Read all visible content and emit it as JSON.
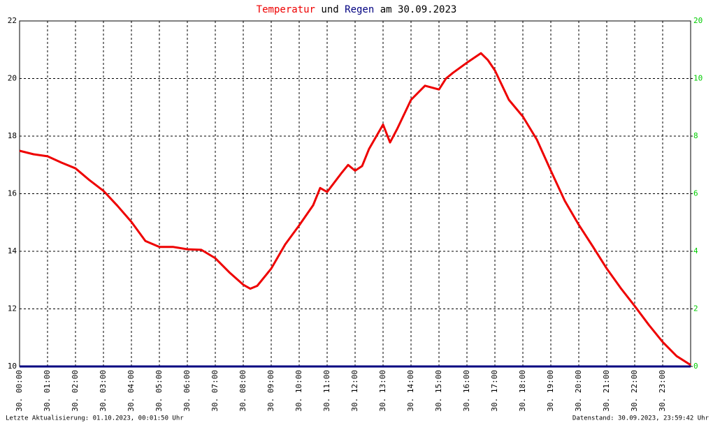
{
  "chart_data": {
    "type": "line",
    "title_connector": "und",
    "title_suffix": "am 30.09.2023",
    "series": [
      {
        "name": "Temperatur",
        "color": "#ee0000",
        "axis": "y",
        "x": [
          0,
          0.5,
          1,
          1.5,
          2,
          2.5,
          3,
          3.5,
          4,
          4.5,
          5,
          5.5,
          6,
          6.5,
          7,
          7.5,
          8,
          8.25,
          8.5,
          9,
          9.5,
          10,
          10.5,
          10.75,
          11,
          11.5,
          11.75,
          12,
          12.25,
          12.5,
          13,
          13.25,
          13.5,
          14,
          14.5,
          15,
          15.25,
          15.5,
          16,
          16.5,
          16.75,
          17,
          17.5,
          18,
          18.5,
          19,
          19.5,
          20,
          20.5,
          21,
          21.5,
          22,
          22.5,
          23,
          23.5,
          24
        ],
        "values": [
          17.49,
          17.37,
          17.3,
          17.08,
          16.88,
          16.47,
          16.1,
          15.58,
          15.02,
          14.36,
          14.15,
          14.15,
          14.07,
          14.05,
          13.76,
          13.27,
          12.84,
          12.7,
          12.8,
          13.4,
          14.24,
          14.9,
          15.6,
          16.2,
          16.06,
          16.7,
          17.0,
          16.8,
          16.96,
          17.56,
          18.4,
          17.78,
          18.24,
          19.26,
          19.75,
          19.62,
          20.0,
          20.2,
          20.55,
          20.88,
          20.64,
          20.28,
          19.26,
          18.68,
          17.88,
          16.8,
          15.75,
          14.92,
          14.17,
          13.4,
          12.72,
          12.1,
          11.45,
          10.85,
          10.36,
          10.05
        ]
      },
      {
        "name": "Regen",
        "color": "#000080",
        "axis": "y2",
        "x": [
          0,
          24
        ],
        "values": [
          0,
          0
        ]
      }
    ],
    "xlim": [
      0,
      24
    ],
    "xticks": [
      {
        "value": 0,
        "label": "30. 00:00"
      },
      {
        "value": 1,
        "label": "30. 01:00"
      },
      {
        "value": 2,
        "label": "30. 02:00"
      },
      {
        "value": 3,
        "label": "30. 03:00"
      },
      {
        "value": 4,
        "label": "30. 04:00"
      },
      {
        "value": 5,
        "label": "30. 05:00"
      },
      {
        "value": 6,
        "label": "30. 06:00"
      },
      {
        "value": 7,
        "label": "30. 07:00"
      },
      {
        "value": 8,
        "label": "30. 08:00"
      },
      {
        "value": 9,
        "label": "30. 09:00"
      },
      {
        "value": 10,
        "label": "30. 10:00"
      },
      {
        "value": 11,
        "label": "30. 11:00"
      },
      {
        "value": 12,
        "label": "30. 12:00"
      },
      {
        "value": 13,
        "label": "30. 13:00"
      },
      {
        "value": 14,
        "label": "30. 14:00"
      },
      {
        "value": 15,
        "label": "30. 15:00"
      },
      {
        "value": 16,
        "label": "30. 16:00"
      },
      {
        "value": 17,
        "label": "30. 17:00"
      },
      {
        "value": 18,
        "label": "30. 18:00"
      },
      {
        "value": 19,
        "label": "30. 19:00"
      },
      {
        "value": 20,
        "label": "30. 20:00"
      },
      {
        "value": 21,
        "label": "30. 21:00"
      },
      {
        "value": 22,
        "label": "30. 22:00"
      },
      {
        "value": 23,
        "label": "30. 23:00"
      }
    ],
    "ylim": [
      10,
      22
    ],
    "yticks": [
      10,
      12,
      14,
      16,
      18,
      20,
      22
    ],
    "y2lim": [
      0,
      12
    ],
    "y2ticks": [
      0,
      2,
      4,
      6,
      8,
      10
    ],
    "y2_top_label": "20",
    "y2_color": "#00cc00",
    "grid": true,
    "footer_left": "Letzte Aktualisierung: 01.10.2023, 00:01:50 Uhr",
    "footer_right": "Datenstand: 30.09.2023, 23:59:42 Uhr"
  }
}
